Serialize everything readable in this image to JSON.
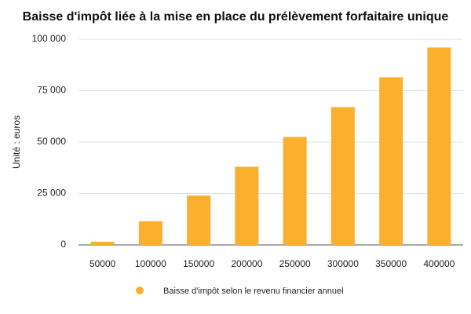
{
  "chart_data": {
    "type": "bar",
    "title": "Baisse d'impôt liée à la mise en place du prélèvement forfaitaire unique",
    "y_label": "Unité : euros",
    "categories": [
      "50000",
      "100000",
      "150000",
      "200000",
      "250000",
      "300000",
      "350000",
      "400000"
    ],
    "series": [
      {
        "name": "Baisse d'impôt selon le revenu financier annuel",
        "color": "#fbb02d",
        "values": [
          1500,
          11500,
          24000,
          38000,
          52500,
          67000,
          81500,
          96000
        ]
      }
    ],
    "ylim": [
      0,
      100000
    ],
    "yticks": [
      0,
      {
        "value": 25000,
        "label": "25 000"
      },
      {
        "value": 50000,
        "label": "50 000"
      },
      {
        "value": 75000,
        "label": "75 000"
      },
      {
        "value": 100000,
        "label": "100 000"
      }
    ],
    "grid": true
  }
}
